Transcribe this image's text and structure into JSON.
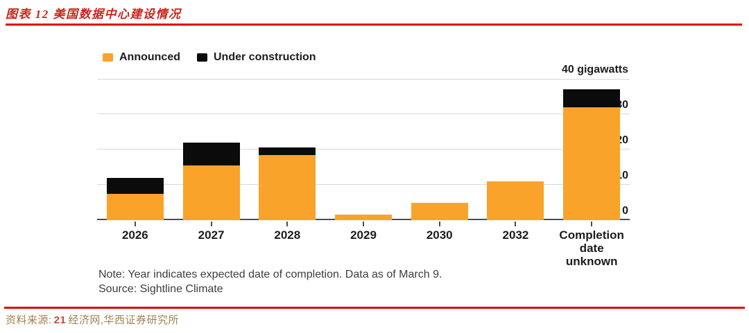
{
  "header": {
    "title": "图表 12 美国数据中心建设情况"
  },
  "footer": {
    "source_label": "资料来源:",
    "source_number": "21",
    "source_rest": "经济网,华西证券研究所"
  },
  "colors": {
    "accent_red": "#E10000",
    "title_red": "#C9261D",
    "announced_orange": "#F9A32B",
    "under_construction_black": "#0B0B0B",
    "source_tan": "#A1824F"
  },
  "chart_data": {
    "type": "bar",
    "stacked": true,
    "title": "",
    "categories": [
      "2026",
      "2027",
      "2028",
      "2029",
      "2030",
      "2032",
      "Completion date unknown"
    ],
    "series": [
      {
        "name": "Announced",
        "color": "#F9A32B",
        "values": [
          7.5,
          15.5,
          18.5,
          1.5,
          5,
          11,
          32
        ]
      },
      {
        "name": "Under construction",
        "color": "#0B0B0B",
        "values": [
          4.5,
          6.5,
          2,
          0,
          0,
          0,
          5
        ]
      }
    ],
    "ylabel_unit": "gigawatts",
    "ylim": [
      0,
      40
    ],
    "yticks": [
      0,
      10,
      20,
      30,
      40
    ],
    "ytick_labels": [
      "0",
      "10",
      "20",
      "30",
      "40 gigawatts"
    ],
    "grid": true,
    "legend_position": "top-left",
    "ytick_side": "right",
    "note": [
      "Note: Year indicates expected date of completion. Data as of March 9.",
      "Source: Sightline Climate"
    ]
  }
}
